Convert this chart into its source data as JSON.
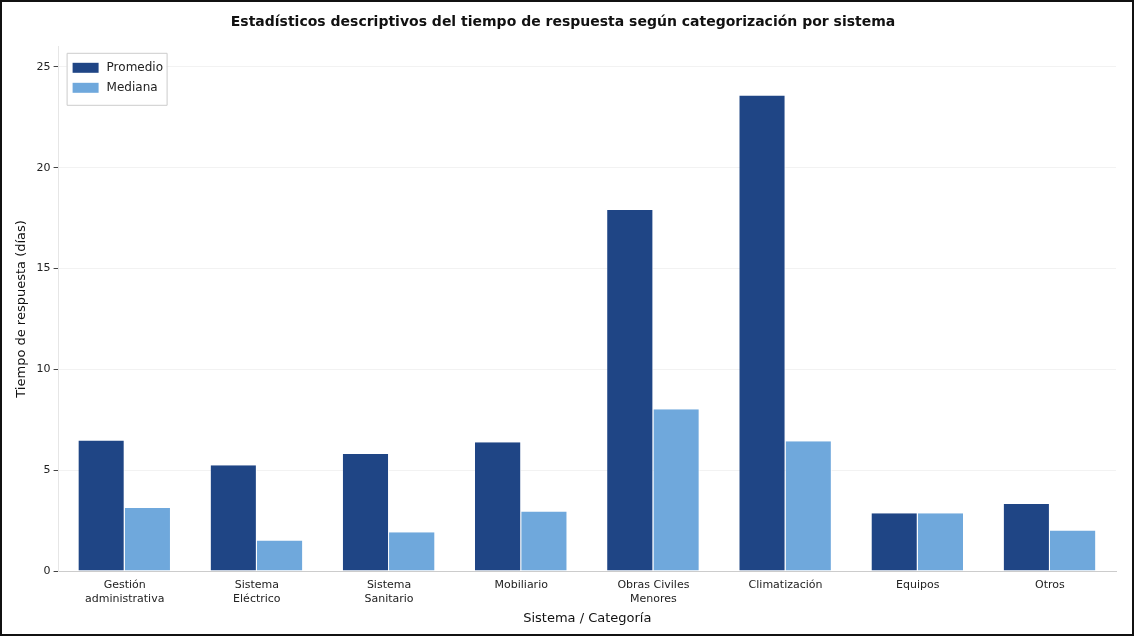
{
  "chart_data": {
    "type": "bar",
    "title": "Estadísticos descriptivos del tiempo de respuesta según categorización por sistema",
    "xlabel": "Sistema / Categoría",
    "ylabel": "Tiempo de respuesta (días)",
    "categories": [
      "Gestión administrativa",
      "Sistema Eléctrico",
      "Sistema Sanitario",
      "Mobiliario",
      "Obras Civiles Menores",
      "Climatización",
      "Equipos",
      "Otros"
    ],
    "series": [
      {
        "name": "Promedio",
        "color": "#1f4585",
        "values": [
          6.47,
          5.24,
          5.8,
          6.38,
          17.91,
          23.58,
          2.87,
          3.32
        ]
      },
      {
        "name": "Mediana",
        "color": "#6fa8dc",
        "values": [
          3.12,
          1.51,
          1.92,
          2.95,
          8.02,
          6.44,
          2.87,
          2.01
        ]
      }
    ],
    "ylim": [
      0,
      26
    ],
    "yticks": [
      0,
      5,
      10,
      15,
      20,
      25
    ],
    "grid": "y",
    "legend": "top left"
  }
}
